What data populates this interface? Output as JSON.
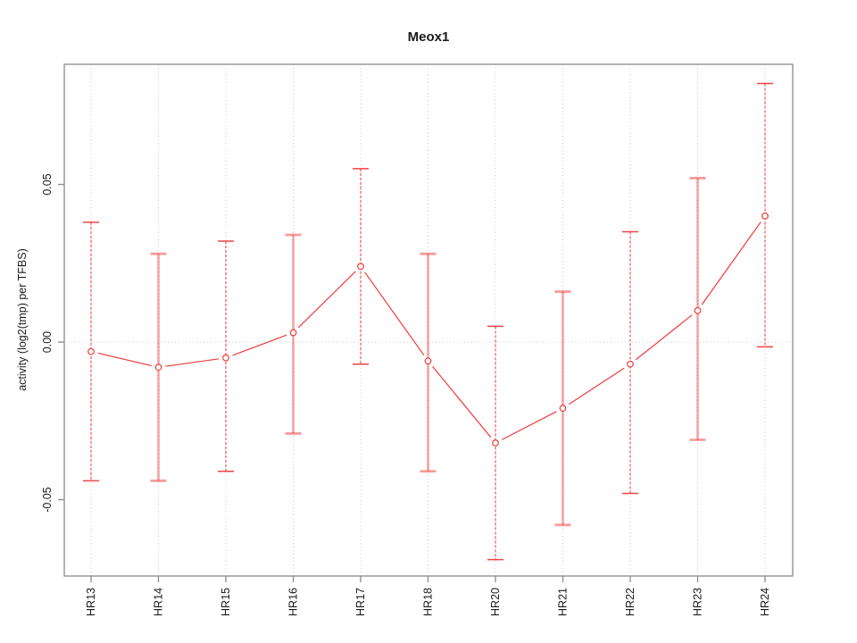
{
  "title": "Meox1",
  "chart_data": {
    "type": "line",
    "title": "Meox1",
    "xlabel": "",
    "ylabel": "activity (log2(tmp) per TFBS)",
    "categories": [
      "HR13",
      "HR14",
      "HR15",
      "HR16",
      "HR17",
      "HR18",
      "HR20",
      "HR21",
      "HR22",
      "HR23",
      "HR24"
    ],
    "series": [
      {
        "name": "activity",
        "values": [
          -0.003,
          -0.008,
          -0.005,
          0.003,
          0.024,
          -0.006,
          -0.032,
          -0.021,
          -0.007,
          0.01,
          0.04
        ],
        "error_low": [
          -0.044,
          -0.044,
          -0.041,
          -0.029,
          -0.007,
          -0.041,
          -0.069,
          -0.058,
          -0.048,
          -0.031,
          -0.0015
        ],
        "error_high": [
          0.038,
          0.028,
          0.032,
          0.034,
          0.055,
          0.028,
          0.005,
          0.016,
          0.035,
          0.052,
          0.082
        ]
      }
    ],
    "yticks": {
      "values": [
        0.05,
        0,
        -0.05
      ],
      "labels": [
        "0.05",
        "0.00",
        "-0.05"
      ]
    },
    "ylim": [
      -0.0742,
      0.0881
    ],
    "h_grid_values": [
      0
    ],
    "grid": "dotted",
    "legend": "none",
    "marker": "open-circle",
    "colors": {
      "series": "#ef3b3b",
      "grid": "#c9c9c9",
      "frame": "#8a8a8a",
      "text": "#1a1a1a",
      "background": "#ffffff"
    }
  }
}
